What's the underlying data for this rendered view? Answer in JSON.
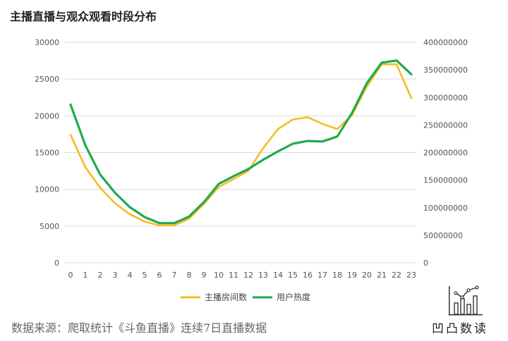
{
  "title": "主播直播与观众观看时段分布",
  "source": "数据来源：爬取统计《斗鱼直播》连续7日直播数据",
  "brand": {
    "name": "凹凸数读"
  },
  "colors": {
    "series1": "#f5bd1f",
    "series2": "#1faa4e",
    "axis": "#d9d9d9"
  },
  "chart_data": {
    "type": "line",
    "title": "主播直播与观众观看时段分布",
    "x": [
      "0",
      "1",
      "2",
      "3",
      "4",
      "5",
      "6",
      "7",
      "8",
      "9",
      "10",
      "11",
      "12",
      "13",
      "14",
      "15",
      "16",
      "17",
      "18",
      "19",
      "20",
      "21",
      "22",
      "23"
    ],
    "ylim_left": [
      0,
      30000
    ],
    "yticks_left": [
      "0",
      "5000",
      "10000",
      "15000",
      "20000",
      "25000",
      "30000"
    ],
    "ylim_right": [
      0,
      400000000
    ],
    "yticks_right": [
      "0",
      "50000000",
      "100000000",
      "150000000",
      "200000000",
      "250000000",
      "300000000",
      "350000000",
      "400000000"
    ],
    "legend_position": "bottom",
    "series": [
      {
        "name": "主播房间数",
        "axis": "left",
        "values": [
          17400,
          13000,
          10200,
          8100,
          6600,
          5600,
          5100,
          5100,
          6000,
          8000,
          10300,
          11400,
          12500,
          15600,
          18200,
          19500,
          19800,
          18900,
          18200,
          20100,
          24000,
          27000,
          27000,
          22400
        ]
      },
      {
        "name": "用户热度",
        "axis": "right",
        "values": [
          287000000,
          213000000,
          160000000,
          127000000,
          101000000,
          83000000,
          72000000,
          72000000,
          84000000,
          110000000,
          143000000,
          157000000,
          170000000,
          187000000,
          202000000,
          216000000,
          221000000,
          220000000,
          229000000,
          272000000,
          326000000,
          363000000,
          367000000,
          342000000
        ]
      }
    ]
  }
}
